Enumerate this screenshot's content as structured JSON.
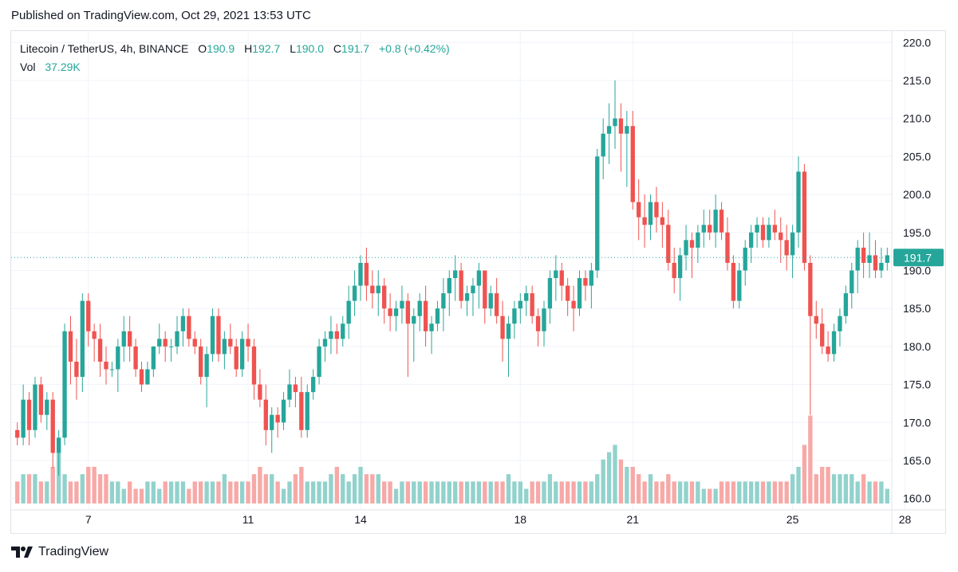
{
  "published": "Published on TradingView.com, Oct 29, 2021 13:53 UTC",
  "legend": {
    "symbol": "Litecoin / TetherUS, 4h, BINANCE",
    "open_label": "O",
    "open": "190.9",
    "high_label": "H",
    "high": "192.7",
    "low_label": "L",
    "low": "190.0",
    "close_label": "C",
    "close": "191.7",
    "change": "+0.8 (+0.42%)",
    "vol_label": "Vol",
    "vol": "37.29K"
  },
  "last_price_label": "191.7",
  "brand": "TradingView",
  "colors": {
    "up": "#26a69a",
    "down": "#ef5350",
    "up_vol": "#92d2cc",
    "down_vol": "#f7a9a7",
    "grid": "#f0f3fa",
    "axis_text": "#131722"
  },
  "chart_data": {
    "type": "candlestick",
    "ylim": [
      158.5,
      221.5
    ],
    "y_ticks": [
      160.0,
      165.0,
      170.0,
      175.0,
      180.0,
      185.0,
      190.0,
      195.0,
      200.0,
      205.0,
      210.0,
      215.0,
      220.0
    ],
    "x_tick_labels": [
      {
        "label": "7",
        "index": 12
      },
      {
        "label": "11",
        "index": 39
      },
      {
        "label": "14",
        "index": 58
      },
      {
        "label": "18",
        "index": 85
      },
      {
        "label": "21",
        "index": 104
      },
      {
        "label": "25",
        "index": 131
      },
      {
        "label": "28",
        "index": 150
      }
    ],
    "last_price": 191.7,
    "candles": [
      [
        169,
        170,
        167,
        168,
        3
      ],
      [
        168,
        175,
        167,
        173,
        4
      ],
      [
        173,
        174,
        167,
        169,
        4
      ],
      [
        169,
        176,
        168,
        175,
        4
      ],
      [
        175,
        176,
        170,
        171,
        3
      ],
      [
        171,
        174,
        169,
        173,
        3
      ],
      [
        173,
        174,
        164,
        166,
        5
      ],
      [
        166,
        169,
        163,
        168,
        7
      ],
      [
        168,
        183,
        167,
        182,
        4
      ],
      [
        182,
        184,
        175,
        178,
        3
      ],
      [
        178,
        181,
        173,
        176,
        3
      ],
      [
        176,
        187,
        174,
        186,
        4
      ],
      [
        186,
        187,
        180,
        182,
        5
      ],
      [
        182,
        183,
        178,
        181,
        5
      ],
      [
        181,
        183,
        176,
        178,
        4
      ],
      [
        178,
        180,
        175,
        177,
        4
      ],
      [
        177,
        178,
        176,
        177,
        3
      ],
      [
        177,
        181,
        174,
        180,
        3
      ],
      [
        180,
        184,
        178,
        182,
        2
      ],
      [
        182,
        184,
        178,
        180,
        3
      ],
      [
        180,
        181,
        176,
        177,
        2
      ],
      [
        177,
        178,
        174,
        175,
        2
      ],
      [
        175,
        178,
        175,
        177,
        3
      ],
      [
        177,
        180,
        176,
        180,
        3
      ],
      [
        180,
        183,
        179,
        181,
        2
      ],
      [
        181,
        182,
        178,
        180,
        3
      ],
      [
        180,
        181,
        178,
        180,
        3
      ],
      [
        180,
        184,
        179,
        182,
        3
      ],
      [
        182,
        185,
        180,
        184,
        3
      ],
      [
        184,
        185,
        180,
        181,
        2
      ],
      [
        181,
        182,
        179,
        180,
        3
      ],
      [
        180,
        181,
        175,
        176,
        3
      ],
      [
        176,
        180,
        172,
        179,
        3
      ],
      [
        179,
        185,
        178,
        184,
        3
      ],
      [
        184,
        185,
        178,
        179,
        3
      ],
      [
        179,
        182,
        177,
        181,
        4
      ],
      [
        181,
        183,
        179,
        180,
        3
      ],
      [
        180,
        181,
        176,
        177,
        3
      ],
      [
        177,
        182,
        176,
        181,
        3
      ],
      [
        181,
        183,
        178,
        180,
        3
      ],
      [
        180,
        181,
        173,
        175,
        4
      ],
      [
        175,
        177,
        172,
        173,
        5
      ],
      [
        173,
        175,
        167,
        169,
        4
      ],
      [
        169,
        172,
        166,
        171,
        4
      ],
      [
        171,
        172,
        168,
        170,
        3
      ],
      [
        170,
        174,
        169,
        173,
        2
      ],
      [
        173,
        177,
        172,
        175,
        3
      ],
      [
        175,
        176,
        172,
        174,
        4
      ],
      [
        174,
        176,
        168,
        169,
        5
      ],
      [
        169,
        175,
        168,
        174,
        3
      ],
      [
        174,
        177,
        173,
        176,
        3
      ],
      [
        176,
        181,
        175,
        180,
        3
      ],
      [
        180,
        182,
        178,
        181,
        3
      ],
      [
        181,
        184,
        179,
        182,
        4
      ],
      [
        182,
        183,
        179,
        181,
        5
      ],
      [
        181,
        184,
        180,
        183,
        4
      ],
      [
        183,
        188,
        181,
        186,
        3
      ],
      [
        186,
        190,
        184,
        188,
        4
      ],
      [
        188,
        192,
        186,
        191,
        5
      ],
      [
        191,
        193,
        186,
        188,
        4
      ],
      [
        188,
        190,
        185,
        187,
        4
      ],
      [
        187,
        190,
        184,
        188,
        4
      ],
      [
        188,
        189,
        183,
        185,
        3
      ],
      [
        185,
        187,
        182,
        184,
        3
      ],
      [
        184,
        186,
        182,
        185,
        2
      ],
      [
        185,
        188,
        183,
        186,
        3
      ],
      [
        186,
        187,
        176,
        183,
        3
      ],
      [
        183,
        185,
        178,
        184,
        3
      ],
      [
        184,
        187,
        182,
        186,
        3
      ],
      [
        186,
        188,
        180,
        182,
        3
      ],
      [
        182,
        184,
        179,
        183,
        3
      ],
      [
        183,
        186,
        182,
        185,
        3
      ],
      [
        185,
        189,
        182,
        187,
        3
      ],
      [
        187,
        190,
        184,
        189,
        3
      ],
      [
        189,
        192,
        186,
        190,
        3
      ],
      [
        190,
        191,
        185,
        186,
        3
      ],
      [
        186,
        188,
        184,
        187,
        3
      ],
      [
        187,
        189,
        184,
        188,
        3
      ],
      [
        188,
        191,
        185,
        190,
        3
      ],
      [
        190,
        190,
        183,
        185,
        3
      ],
      [
        185,
        188,
        184,
        187,
        3
      ],
      [
        187,
        189,
        183,
        184,
        3
      ],
      [
        184,
        186,
        178,
        181,
        3
      ],
      [
        181,
        184,
        176,
        183,
        4
      ],
      [
        183,
        186,
        181,
        185,
        3
      ],
      [
        185,
        187,
        183,
        186,
        3
      ],
      [
        186,
        188,
        184,
        187,
        2
      ],
      [
        187,
        188,
        183,
        184,
        3
      ],
      [
        184,
        185,
        180,
        182,
        3
      ],
      [
        182,
        186,
        180,
        185,
        3
      ],
      [
        185,
        190,
        183,
        189,
        4
      ],
      [
        189,
        192,
        186,
        190,
        3
      ],
      [
        190,
        191,
        186,
        188,
        3
      ],
      [
        188,
        189,
        184,
        186,
        3
      ],
      [
        186,
        188,
        182,
        185,
        3
      ],
      [
        185,
        190,
        184,
        189,
        3
      ],
      [
        189,
        190,
        186,
        188,
        3
      ],
      [
        188,
        191,
        185,
        190,
        3
      ],
      [
        190,
        206,
        189,
        205,
        4
      ],
      [
        205,
        210,
        202,
        208,
        6
      ],
      [
        208,
        212,
        204,
        209,
        7
      ],
      [
        209,
        215,
        206,
        210,
        8
      ],
      [
        210,
        212,
        203,
        208,
        6
      ],
      [
        208,
        211,
        201,
        209,
        5
      ],
      [
        209,
        211,
        198,
        199,
        5
      ],
      [
        199,
        202,
        194,
        197,
        4
      ],
      [
        197,
        200,
        193,
        196,
        3
      ],
      [
        196,
        200,
        194,
        199,
        4
      ],
      [
        199,
        201,
        195,
        197,
        3
      ],
      [
        197,
        199,
        193,
        196,
        3
      ],
      [
        196,
        198,
        190,
        191,
        4
      ],
      [
        191,
        193,
        187,
        189,
        3
      ],
      [
        189,
        193,
        186,
        192,
        3
      ],
      [
        192,
        196,
        190,
        194,
        3
      ],
      [
        194,
        195,
        189,
        193,
        3
      ],
      [
        193,
        196,
        191,
        195,
        3
      ],
      [
        195,
        198,
        193,
        196,
        2
      ],
      [
        196,
        198,
        194,
        195,
        2
      ],
      [
        195,
        200,
        193,
        198,
        2
      ],
      [
        198,
        199,
        194,
        195,
        3
      ],
      [
        195,
        197,
        190,
        191,
        3
      ],
      [
        191,
        192,
        185,
        186,
        3
      ],
      [
        186,
        191,
        185,
        190,
        3
      ],
      [
        190,
        194,
        188,
        193,
        3
      ],
      [
        193,
        196,
        191,
        195,
        3
      ],
      [
        195,
        197,
        193,
        196,
        3
      ],
      [
        196,
        197,
        193,
        194,
        3
      ],
      [
        194,
        197,
        193,
        196,
        3
      ],
      [
        196,
        198,
        194,
        195,
        3
      ],
      [
        195,
        197,
        191,
        194,
        3
      ],
      [
        194,
        196,
        190,
        192,
        3
      ],
      [
        192,
        196,
        189,
        195,
        4
      ],
      [
        195,
        205,
        193,
        203,
        5
      ],
      [
        203,
        204,
        190,
        191,
        8
      ],
      [
        191,
        192,
        171,
        184,
        12
      ],
      [
        184,
        186,
        181,
        183,
        4
      ],
      [
        183,
        185,
        179,
        180,
        5
      ],
      [
        180,
        182,
        178,
        179,
        5
      ],
      [
        179,
        183,
        178,
        182,
        4
      ],
      [
        182,
        185,
        180,
        184,
        4
      ],
      [
        184,
        188,
        183,
        187,
        4
      ],
      [
        187,
        191,
        185,
        190,
        4
      ],
      [
        190,
        194,
        187,
        193,
        3
      ],
      [
        193,
        195,
        189,
        191,
        4
      ],
      [
        191,
        195,
        189,
        192,
        3
      ],
      [
        192,
        194,
        189,
        190,
        3
      ],
      [
        190,
        193,
        189,
        191,
        3
      ],
      [
        191,
        193,
        190,
        192,
        2
      ]
    ]
  }
}
